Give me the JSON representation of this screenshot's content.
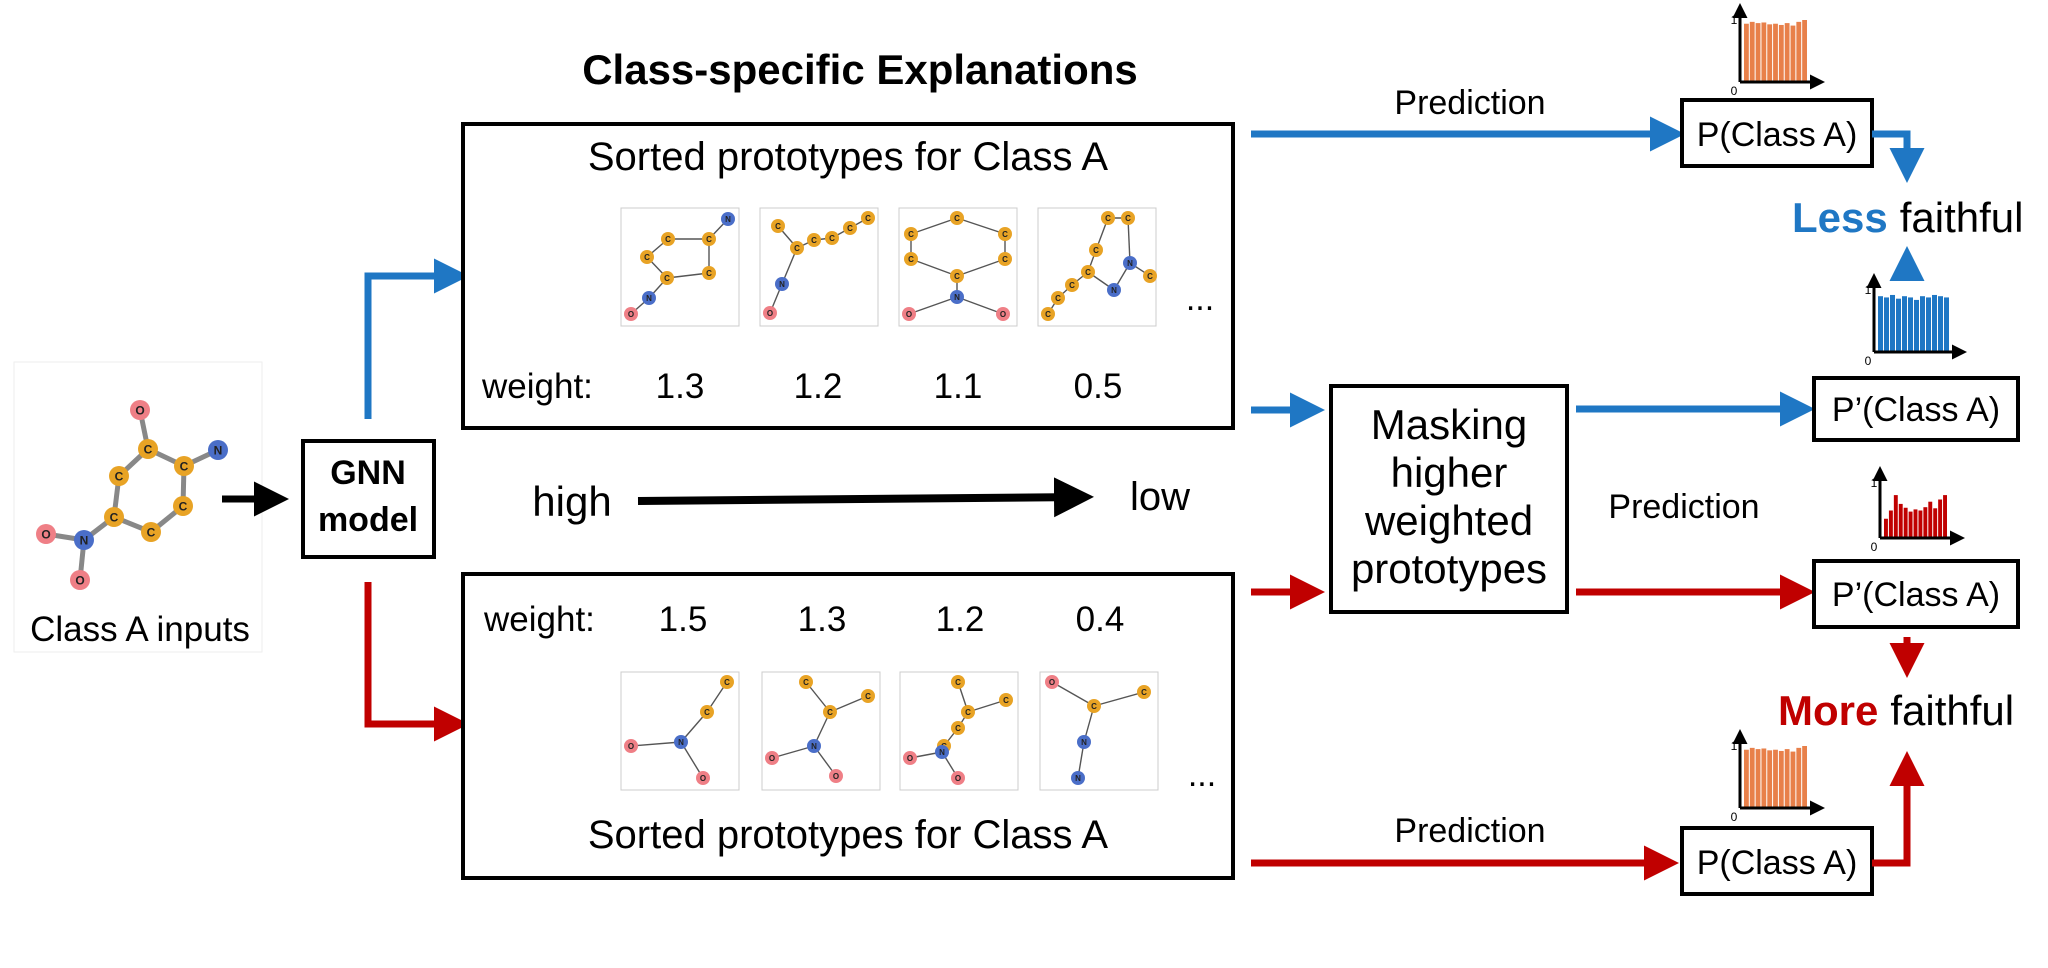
{
  "title": "Class-specific Explanations",
  "input": {
    "label": "Class A inputs"
  },
  "model": {
    "line1": "GNN",
    "line2": "model"
  },
  "top_panel": {
    "heading": "Sorted prototypes for Class A",
    "weight_label": "weight:",
    "weights": [
      "1.3",
      "1.2",
      "1.1",
      "0.5"
    ],
    "ellipsis": "..."
  },
  "bottom_panel": {
    "heading": "Sorted prototypes for Class A",
    "weight_label": "weight:",
    "weights": [
      "1.5",
      "1.3",
      "1.2",
      "0.4"
    ],
    "ellipsis": "..."
  },
  "scale": {
    "high": "high",
    "low": "low"
  },
  "masking": {
    "line1": "Masking",
    "line2": "higher",
    "line3": "weighted",
    "line4": "prototypes"
  },
  "outputs": {
    "prediction_top": "Prediction",
    "prediction_mid": "Prediction",
    "prediction_bottom": "Prediction",
    "p_top": "P(Class A)",
    "p_masked_top": "P’(Class A)",
    "p_masked_bottom": "P’(Class A)",
    "p_bottom": "P(Class A)"
  },
  "verdicts": {
    "less_word": "Less",
    "more_word": "More",
    "faithful": "faithful"
  },
  "hist_axis": {
    "zero": "0",
    "one": "1"
  },
  "colors": {
    "blue": "#1f77c4",
    "red": "#c00000",
    "orange": "#e8804a",
    "carbon": "#e8a325",
    "nitrogen": "#4a6ec8",
    "oxygen": "#ef7f86"
  },
  "atoms": {
    "carbon": "C",
    "nitrogen": "N",
    "oxygen": "O"
  }
}
